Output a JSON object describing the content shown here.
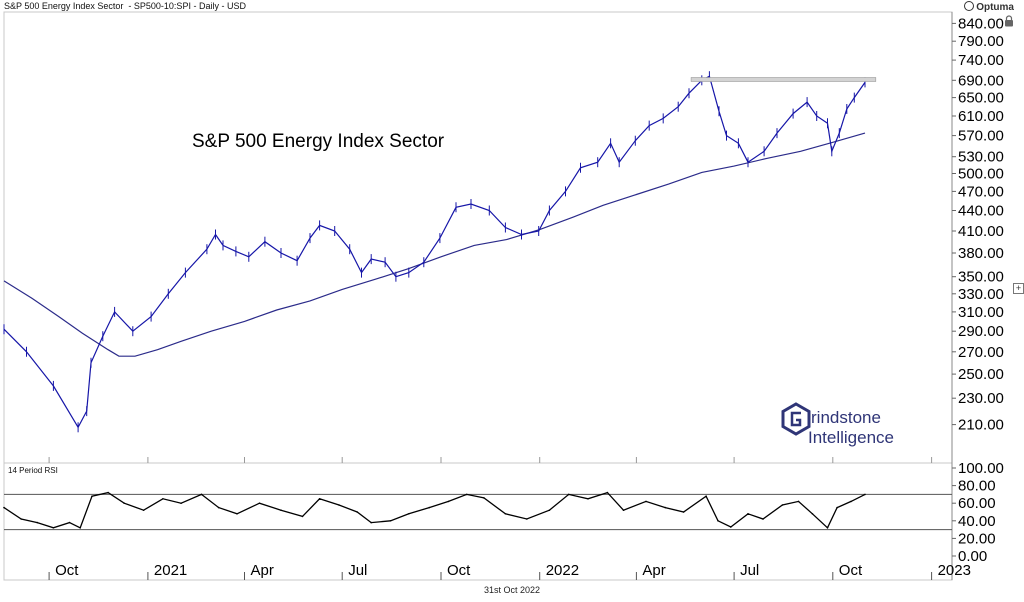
{
  "header": {
    "left": "S&P 500 Energy Index Sector  - SP500-10:SPI - Daily - USD",
    "brand": "Optuma"
  },
  "footer_date": "31st Oct 2022",
  "watermark": {
    "line1": "rindstone",
    "line2": "Intelligence"
  },
  "colors": {
    "price": "#1616a8",
    "ma": "#2b2b8a",
    "rsi": "#000000",
    "resistance": "#bdbdbd"
  },
  "chart_data": [
    {
      "type": "line",
      "title": "S&P 500 Energy Index Sector",
      "x_axis_type": "date",
      "x_range": [
        "2020-08-20",
        "2023-01-20"
      ],
      "x_ticks": [
        {
          "label": "Oct",
          "date": "2020-10-01"
        },
        {
          "label": "2021",
          "date": "2021-01-01"
        },
        {
          "label": "Apr",
          "date": "2021-04-01"
        },
        {
          "label": "Jul",
          "date": "2021-07-01"
        },
        {
          "label": "Oct",
          "date": "2021-10-01"
        },
        {
          "label": "2022",
          "date": "2022-01-01"
        },
        {
          "label": "Apr",
          "date": "2022-04-01"
        },
        {
          "label": "Jul",
          "date": "2022-07-01"
        },
        {
          "label": "Oct",
          "date": "2022-10-01"
        },
        {
          "label": "2023",
          "date": "2023-01-01"
        }
      ],
      "y_scale": "log",
      "y_range": [
        195,
        850
      ],
      "y_tick_labels": [
        "840.00",
        "790.00",
        "740.00",
        "690.00",
        "650.00",
        "610.00",
        "570.00",
        "530.00",
        "500.00",
        "470.00",
        "440.00",
        "410.00",
        "380.00",
        "350.00",
        "330.00",
        "310.00",
        "290.00",
        "270.00",
        "250.00",
        "230.00",
        "210.00"
      ],
      "series": [
        {
          "role": "price",
          "x": [
            "2020-08-20",
            "2020-09-10",
            "2020-10-05",
            "2020-10-28",
            "2020-11-05",
            "2020-11-09",
            "2020-11-20",
            "2020-12-01",
            "2020-12-18",
            "2021-01-04",
            "2021-01-20",
            "2021-02-05",
            "2021-02-25",
            "2021-03-05",
            "2021-03-12",
            "2021-03-24",
            "2021-04-05",
            "2021-04-20",
            "2021-05-05",
            "2021-05-20",
            "2021-06-01",
            "2021-06-10",
            "2021-06-24",
            "2021-07-08",
            "2021-07-19",
            "2021-07-28",
            "2021-08-10",
            "2021-08-20",
            "2021-09-01",
            "2021-09-15",
            "2021-09-30",
            "2021-10-15",
            "2021-10-29",
            "2021-11-15",
            "2021-11-30",
            "2021-12-15",
            "2021-12-31",
            "2022-01-10",
            "2022-01-25",
            "2022-02-08",
            "2022-02-24",
            "2022-03-08",
            "2022-03-16",
            "2022-03-31",
            "2022-04-13",
            "2022-04-26",
            "2022-05-10",
            "2022-05-20",
            "2022-06-01",
            "2022-06-08",
            "2022-06-17",
            "2022-06-24",
            "2022-07-05",
            "2022-07-14",
            "2022-07-29",
            "2022-08-10",
            "2022-08-25",
            "2022-09-07",
            "2022-09-16",
            "2022-09-26",
            "2022-09-30",
            "2022-10-07",
            "2022-10-14",
            "2022-10-21",
            "2022-10-31"
          ],
          "y": [
            292,
            270,
            240,
            208,
            220,
            260,
            285,
            310,
            290,
            305,
            330,
            355,
            385,
            405,
            390,
            382,
            375,
            395,
            380,
            370,
            400,
            418,
            410,
            385,
            355,
            372,
            368,
            350,
            355,
            368,
            400,
            445,
            450,
            440,
            415,
            405,
            410,
            440,
            470,
            510,
            520,
            555,
            520,
            560,
            590,
            605,
            630,
            660,
            690,
            700,
            620,
            570,
            555,
            520,
            540,
            575,
            615,
            640,
            610,
            595,
            540,
            575,
            625,
            650,
            685
          ]
        },
        {
          "role": "moving-average",
          "x": [
            "2020-08-20",
            "2020-09-15",
            "2020-10-10",
            "2020-11-01",
            "2020-11-25",
            "2020-12-05",
            "2020-12-20",
            "2021-01-10",
            "2021-02-01",
            "2021-03-01",
            "2021-04-01",
            "2021-05-01",
            "2021-06-01",
            "2021-07-01",
            "2021-08-01",
            "2021-09-01",
            "2021-10-01",
            "2021-11-01",
            "2021-12-01",
            "2022-01-01",
            "2022-02-01",
            "2022-03-01",
            "2022-04-01",
            "2022-05-01",
            "2022-06-01",
            "2022-07-01",
            "2022-08-01",
            "2022-09-01",
            "2022-10-01",
            "2022-10-31"
          ],
          "y": [
            345,
            325,
            305,
            288,
            272,
            266,
            266,
            272,
            280,
            290,
            300,
            312,
            322,
            335,
            347,
            360,
            375,
            390,
            398,
            412,
            430,
            448,
            465,
            482,
            502,
            513,
            527,
            540,
            557,
            575
          ]
        }
      ],
      "annotations": [
        {
          "type": "horizontal-line",
          "y": 692,
          "x_start": "2022-05-22",
          "x_end": "2022-11-10"
        }
      ]
    },
    {
      "type": "line",
      "title": "14 Period RSI",
      "x_axis_type": "date",
      "x_range": [
        "2020-08-20",
        "2023-01-20"
      ],
      "y_range": [
        0,
        100
      ],
      "y_tick_labels": [
        "100.00",
        "80.00",
        "60.00",
        "40.00",
        "20.00",
        "0.00"
      ],
      "reference_lines": [
        70,
        30
      ],
      "series": [
        {
          "role": "rsi",
          "x": [
            "2020-08-20",
            "2020-09-05",
            "2020-09-20",
            "2020-10-05",
            "2020-10-20",
            "2020-10-30",
            "2020-11-10",
            "2020-11-25",
            "2020-12-10",
            "2020-12-28",
            "2021-01-15",
            "2021-02-01",
            "2021-02-20",
            "2021-03-08",
            "2021-03-25",
            "2021-04-15",
            "2021-05-05",
            "2021-05-25",
            "2021-06-10",
            "2021-06-28",
            "2021-07-15",
            "2021-07-28",
            "2021-08-15",
            "2021-09-01",
            "2021-09-20",
            "2021-10-08",
            "2021-10-25",
            "2021-11-10",
            "2021-11-30",
            "2021-12-20",
            "2022-01-10",
            "2022-01-28",
            "2022-02-15",
            "2022-03-05",
            "2022-03-20",
            "2022-04-10",
            "2022-04-28",
            "2022-05-15",
            "2022-06-05",
            "2022-06-16",
            "2022-06-28",
            "2022-07-14",
            "2022-07-28",
            "2022-08-15",
            "2022-08-30",
            "2022-09-12",
            "2022-09-26",
            "2022-10-05",
            "2022-10-18",
            "2022-10-31"
          ],
          "y": [
            55,
            42,
            38,
            32,
            38,
            32,
            68,
            72,
            60,
            52,
            65,
            60,
            70,
            55,
            48,
            60,
            52,
            45,
            65,
            58,
            50,
            38,
            40,
            48,
            55,
            62,
            70,
            66,
            48,
            42,
            52,
            70,
            65,
            72,
            52,
            62,
            55,
            50,
            68,
            40,
            33,
            48,
            42,
            58,
            62,
            48,
            32,
            55,
            62,
            70
          ]
        }
      ]
    }
  ]
}
